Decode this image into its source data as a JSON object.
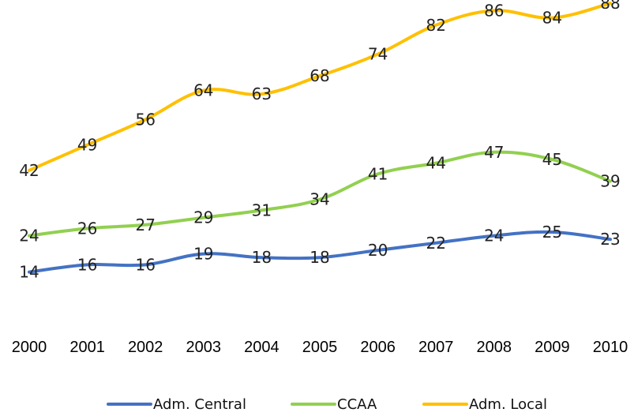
{
  "chart_data": {
    "type": "line",
    "title": "",
    "xlabel": "",
    "ylabel": "",
    "x": [
      "2000",
      "2001",
      "2002",
      "2003",
      "2004",
      "2005",
      "2006",
      "2007",
      "2008",
      "2009",
      "2010"
    ],
    "series": [
      {
        "name": "Adm. Central",
        "color": "#4472C4",
        "values": [
          14,
          16,
          16,
          19,
          18,
          18,
          20,
          22,
          24,
          25,
          23
        ]
      },
      {
        "name": "CCAA",
        "color": "#92D050",
        "values": [
          24,
          26,
          27,
          29,
          31,
          34,
          41,
          44,
          47,
          45,
          39
        ]
      },
      {
        "name": "Adm. Local",
        "color": "#FFC000",
        "values": [
          42,
          49,
          56,
          64,
          63,
          68,
          74,
          82,
          86,
          84,
          88
        ]
      }
    ],
    "ylim": [
      0,
      95
    ],
    "grid": false,
    "legend_position": "bottom"
  }
}
